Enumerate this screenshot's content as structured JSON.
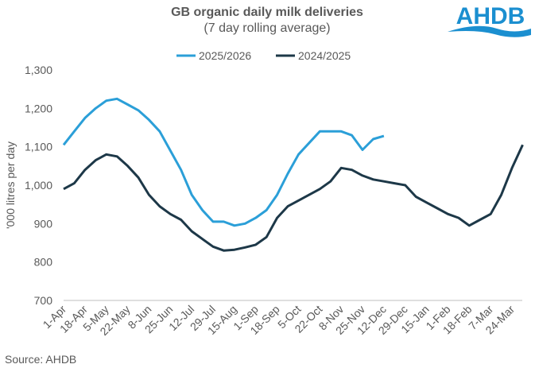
{
  "chart_data": {
    "type": "line",
    "title": "GB organic daily milk deliveries",
    "subtitle": "(7 day rolling average)",
    "y_label": "'000 litres per day",
    "source": "Source: AHDB",
    "logo": "AHDB",
    "categories": [
      "1-Apr",
      null,
      "18-Apr",
      null,
      "5-May",
      null,
      "22-May",
      null,
      "8-Jun",
      null,
      "25-Jun",
      null,
      "12-Jul",
      null,
      "29-Jul",
      null,
      "15-Aug",
      null,
      "1-Sep",
      null,
      "18-Sep",
      null,
      "5-Oct",
      null,
      "22-Oct",
      null,
      "8-Nov",
      null,
      "25-Nov",
      null,
      "12-Dec",
      null,
      "29-Dec",
      null,
      "15-Jan",
      null,
      "1-Feb",
      null,
      "18-Feb",
      null,
      "7-Mar",
      null,
      "24-Mar",
      null
    ],
    "series": [
      {
        "name": "2025/2026",
        "color": "#2b9fd8",
        "values": [
          1105,
          1140,
          1175,
          1200,
          1220,
          1225,
          1210,
          1195,
          1170,
          1140,
          1090,
          1040,
          975,
          935,
          905,
          905,
          895,
          900,
          915,
          935,
          975,
          1030,
          1080,
          1110,
          1140,
          1140,
          1140,
          1130,
          1092,
          1120,
          1128,
          null,
          null,
          null,
          null,
          null,
          null,
          null,
          null,
          null,
          null,
          null,
          null,
          null
        ]
      },
      {
        "name": "2024/2025",
        "color": "#1d3848",
        "values": [
          990,
          1005,
          1040,
          1065,
          1080,
          1075,
          1050,
          1020,
          975,
          945,
          925,
          910,
          880,
          860,
          840,
          830,
          832,
          838,
          845,
          865,
          915,
          945,
          960,
          975,
          990,
          1010,
          1045,
          1040,
          1025,
          1015,
          1010,
          1005,
          1000,
          970,
          955,
          940,
          925,
          915,
          895,
          910,
          925,
          975,
          1045,
          1105
        ]
      }
    ],
    "ylim": [
      700,
      1300
    ],
    "yticks": [
      700,
      800,
      900,
      {
        "value": 1000,
        "label": "1,000"
      },
      {
        "value": 1100,
        "label": "1,100"
      },
      {
        "value": 1200,
        "label": "1,200"
      },
      {
        "value": 1300,
        "label": "1,300"
      }
    ],
    "legend": "top",
    "grid": false
  }
}
